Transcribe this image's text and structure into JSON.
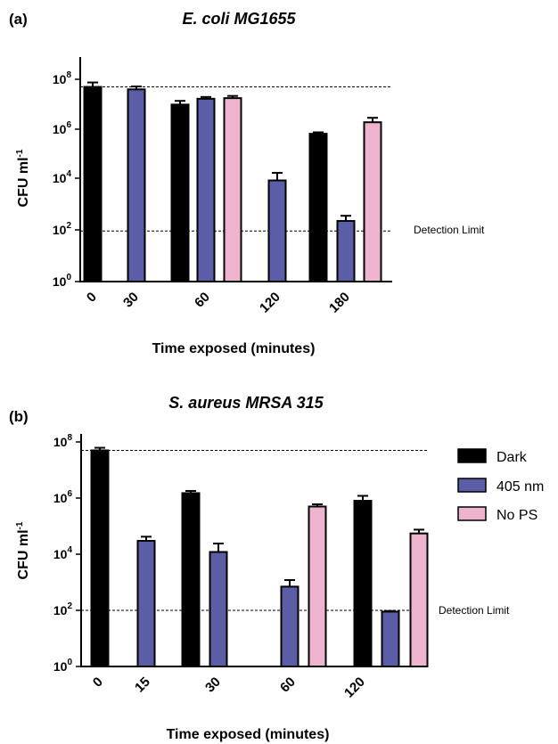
{
  "colors": {
    "Dark": "#000000",
    "405 nm": "#5b5ea6",
    "No PS": "#eeb3cf"
  },
  "legend": [
    {
      "name": "Dark",
      "color": "#000000"
    },
    {
      "name": "405 nm",
      "color": "#5b5ea6"
    },
    {
      "name": "No PS",
      "color": "#eeb3cf"
    }
  ],
  "chart_data": [
    {
      "panel": "(a)",
      "type": "bar",
      "title": "E. coli MG1655",
      "xlabel": "Time exposed (minutes)",
      "ylabel_base": "CFU ml",
      "ylabel_sup": "-1",
      "yscale": "log",
      "ylim": [
        1,
        1000000000
      ],
      "yticks": [
        {
          "base": "10",
          "exp": "0",
          "value": 1
        },
        {
          "base": "10",
          "exp": "2",
          "value": 100
        },
        {
          "base": "10",
          "exp": "4",
          "value": 10000
        },
        {
          "base": "10",
          "exp": "6",
          "value": 1000000
        },
        {
          "base": "10",
          "exp": "8",
          "value": 100000000
        }
      ],
      "categories": [
        "0",
        "30",
        "60",
        "120",
        "180"
      ],
      "groups": [
        {
          "category": "0",
          "bars": [
            {
              "series": "Dark",
              "value": 50000000,
              "err": 25000000
            }
          ]
        },
        {
          "category": "30",
          "bars": [
            {
              "series": "405 nm",
              "value": 40000000,
              "err": 12000000
            }
          ]
        },
        {
          "category": "60",
          "bars": [
            {
              "series": "Dark",
              "value": 10000000,
              "err": 4000000
            },
            {
              "series": "405 nm",
              "value": 17000000,
              "err": 3000000
            },
            {
              "series": "No PS",
              "value": 18000000,
              "err": 4000000
            }
          ]
        },
        {
          "category": "120",
          "bars": [
            {
              "series": "405 nm",
              "value": 10000,
              "err": 10000
            }
          ]
        },
        {
          "category": "180",
          "bars": [
            {
              "series": "Dark",
              "value": 700000,
              "err": 100000
            },
            {
              "series": "405 nm",
              "value": 250,
              "err": 150
            },
            {
              "series": "No PS",
              "value": 2000000,
              "err": 1000000
            }
          ]
        }
      ],
      "reference_lines": [
        {
          "value": 50000000,
          "label": ""
        },
        {
          "value": 100,
          "label": "Detection Limit"
        }
      ]
    },
    {
      "panel": "(b)",
      "type": "bar",
      "title": "S. aureus MRSA 315",
      "xlabel": "Time exposed (minutes)",
      "ylabel_base": "CFU ml",
      "ylabel_sup": "-1",
      "yscale": "log",
      "ylim": [
        1,
        100000000
      ],
      "yticks": [
        {
          "base": "10",
          "exp": "0",
          "value": 1
        },
        {
          "base": "10",
          "exp": "2",
          "value": 100
        },
        {
          "base": "10",
          "exp": "4",
          "value": 10000
        },
        {
          "base": "10",
          "exp": "6",
          "value": 1000000
        },
        {
          "base": "10",
          "exp": "8",
          "value": 100000000
        }
      ],
      "categories": [
        "0",
        "15",
        "30",
        "60",
        "120"
      ],
      "groups": [
        {
          "category": "0",
          "bars": [
            {
              "series": "Dark",
              "value": 50000000,
              "err": 12000000
            }
          ]
        },
        {
          "category": "15",
          "bars": [
            {
              "series": "405 nm",
              "value": 30000,
              "err": 12000
            }
          ]
        },
        {
          "category": "30",
          "bars": [
            {
              "series": "Dark",
              "value": 1500000,
              "err": 300000
            },
            {
              "series": "405 nm",
              "value": 12000,
              "err": 12000
            }
          ]
        },
        {
          "category": "60",
          "bars": [
            {
              "series": "405 nm",
              "value": 700,
              "err": 500
            },
            {
              "series": "No PS",
              "value": 500000,
              "err": 100000
            }
          ]
        },
        {
          "category": "120",
          "bars": [
            {
              "series": "Dark",
              "value": 800000,
              "err": 400000
            },
            {
              "series": "405 nm",
              "value": 90,
              "err": 5
            },
            {
              "series": "No PS",
              "value": 55000,
              "err": 20000
            }
          ]
        }
      ],
      "reference_lines": [
        {
          "value": 50000000,
          "label": ""
        },
        {
          "value": 100,
          "label": "Detection Limit"
        }
      ]
    }
  ]
}
